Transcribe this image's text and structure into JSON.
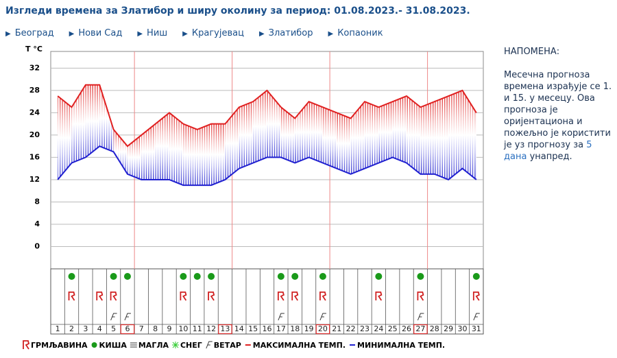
{
  "chart_data": {
    "type": "line",
    "title": "Изгледи времена за Златибор и ширу околину за период: 01.08.2023.- 31.08.2023.",
    "nav": [
      "Београд",
      "Нови Сад",
      "Ниш",
      "Крагујевац",
      "Златибор",
      "Копаоник"
    ],
    "ylabel": "T °C",
    "categories": [
      "1",
      "2",
      "3",
      "4",
      "5",
      "6",
      "7",
      "8",
      "9",
      "10",
      "11",
      "12",
      "13",
      "14",
      "15",
      "16",
      "17",
      "18",
      "19",
      "20",
      "21",
      "22",
      "23",
      "24",
      "25",
      "26",
      "27",
      "28",
      "29",
      "30",
      "31"
    ],
    "ylim": [
      -4,
      35
    ],
    "yticks": [
      0,
      4,
      8,
      12,
      16,
      20,
      24,
      28,
      32
    ],
    "grid": true,
    "series": [
      {
        "name": "МАКСИМАЛНА ТЕМП.",
        "color": "#e02020",
        "values": [
          27,
          25,
          29,
          29,
          21,
          18,
          20,
          22,
          24,
          22,
          21,
          22,
          22,
          25,
          26,
          28,
          25,
          23,
          26,
          25,
          24,
          23,
          26,
          25,
          26,
          27,
          25,
          26,
          27,
          28,
          24
        ]
      },
      {
        "name": "МИНИМАЛНА ТЕМП.",
        "color": "#2020d0",
        "values": [
          12,
          15,
          16,
          18,
          17,
          13,
          12,
          12,
          12,
          11,
          11,
          11,
          12,
          14,
          15,
          16,
          16,
          15,
          16,
          15,
          14,
          13,
          14,
          15,
          16,
          15,
          13,
          13,
          12,
          14,
          12
        ]
      }
    ],
    "rain_days": [
      2,
      5,
      6,
      10,
      11,
      12,
      17,
      18,
      20,
      24,
      27,
      31
    ],
    "thunder_days": [
      2,
      4,
      5,
      10,
      12,
      17,
      18,
      20,
      24,
      27,
      31
    ],
    "wind_days": [
      5,
      6,
      17,
      20,
      27,
      31
    ],
    "sundays": [
      6,
      13,
      20,
      27
    ],
    "legend": [
      "ГРМЉАВИНА",
      "КИША",
      "МАГЛА",
      "СНЕГ",
      "ВЕТАР"
    ],
    "note": {
      "heading": "НАПОМЕНА:",
      "text_before": "Месечна прогноза времена израђује се 1. и 15. у месецу. Ова прогноза је оријентациона и пожељно је користити је уз прогнозу за",
      "link": "5 дана",
      "text_after": "унапред."
    }
  }
}
